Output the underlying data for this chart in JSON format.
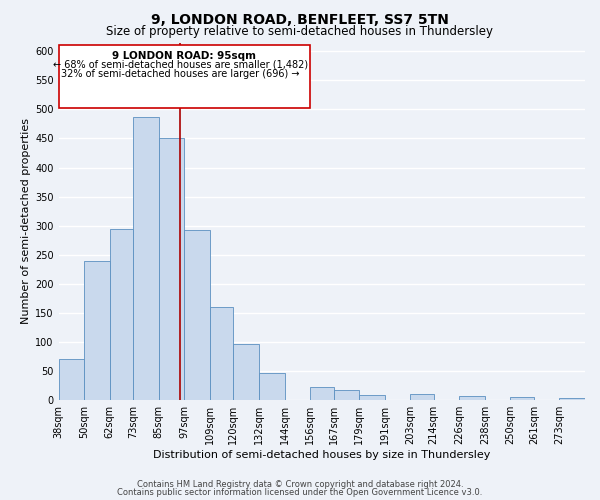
{
  "title": "9, LONDON ROAD, BENFLEET, SS7 5TN",
  "subtitle": "Size of property relative to semi-detached houses in Thundersley",
  "xlabel": "Distribution of semi-detached houses by size in Thundersley",
  "ylabel": "Number of semi-detached properties",
  "bin_labels": [
    "38sqm",
    "50sqm",
    "62sqm",
    "73sqm",
    "85sqm",
    "97sqm",
    "109sqm",
    "120sqm",
    "132sqm",
    "144sqm",
    "156sqm",
    "167sqm",
    "179sqm",
    "191sqm",
    "203sqm",
    "214sqm",
    "226sqm",
    "238sqm",
    "250sqm",
    "261sqm",
    "273sqm"
  ],
  "bin_edges": [
    38,
    50,
    62,
    73,
    85,
    97,
    109,
    120,
    132,
    144,
    156,
    167,
    179,
    191,
    203,
    214,
    226,
    238,
    250,
    261,
    273
  ],
  "bar_heights": [
    70,
    240,
    295,
    487,
    450,
    293,
    160,
    97,
    47,
    0,
    22,
    17,
    9,
    0,
    10,
    0,
    7,
    0,
    5,
    0,
    3
  ],
  "bar_color": "#c9d9ed",
  "bar_edge_color": "#5a8fc0",
  "property_size": 95,
  "property_label": "9 LONDON ROAD: 95sqm",
  "annotation_line1": "← 68% of semi-detached houses are smaller (1,482)",
  "annotation_line2": "32% of semi-detached houses are larger (696) →",
  "vline_color": "#aa0000",
  "box_edge_color": "#cc0000",
  "ylim": [
    0,
    615
  ],
  "yticks": [
    0,
    50,
    100,
    150,
    200,
    250,
    300,
    350,
    400,
    450,
    500,
    550,
    600
  ],
  "footnote1": "Contains HM Land Registry data © Crown copyright and database right 2024.",
  "footnote2": "Contains public sector information licensed under the Open Government Licence v3.0.",
  "bg_color": "#eef2f8",
  "grid_color": "#ffffff",
  "title_fontsize": 10,
  "subtitle_fontsize": 8.5,
  "axis_label_fontsize": 8,
  "tick_fontsize": 7,
  "annotation_fontsize": 7.5,
  "footnote_fontsize": 6
}
